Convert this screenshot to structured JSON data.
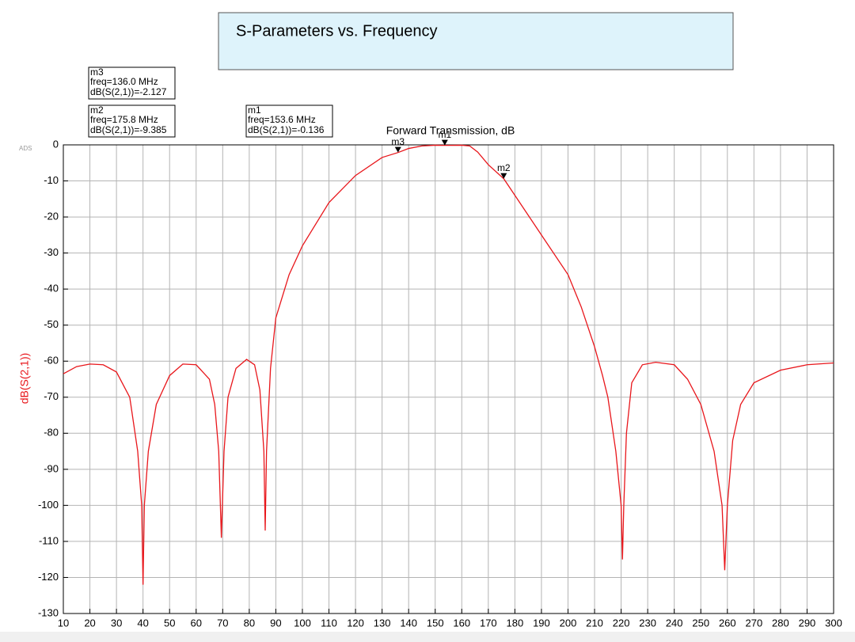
{
  "chart_data": {
    "type": "line",
    "title": "S-Parameters vs. Frequency",
    "logo": "ADS",
    "ylabel": "dB(S(2,1))",
    "trace_label": "Forward Transmission, dB",
    "xlim": [
      10,
      300
    ],
    "ylim": [
      -130,
      0
    ],
    "xticks": [
      10,
      20,
      30,
      40,
      50,
      60,
      70,
      80,
      90,
      100,
      110,
      120,
      130,
      140,
      150,
      160,
      170,
      180,
      190,
      200,
      210,
      220,
      230,
      240,
      250,
      260,
      270,
      280,
      290,
      300
    ],
    "yticks": [
      0,
      -10,
      -20,
      -30,
      -40,
      -50,
      -60,
      -70,
      -80,
      -90,
      -100,
      -110,
      -120,
      -130
    ],
    "grid": true,
    "series": [
      {
        "name": "dB(S(2,1))",
        "color": "#e8161b",
        "x": [
          10,
          15,
          20,
          25,
          30,
          35,
          38,
          39.5,
          40,
          40.5,
          42,
          45,
          50,
          55,
          60,
          65,
          67,
          68.5,
          69.5,
          70.5,
          72,
          75,
          79,
          82,
          84,
          85.5,
          86,
          86.5,
          88,
          90,
          95,
          100,
          110,
          120,
          130,
          136,
          140,
          145,
          150,
          153.6,
          160,
          163,
          166,
          170,
          175.8,
          180,
          190,
          200,
          205,
          210,
          213,
          215,
          218,
          220,
          220.5,
          221,
          222,
          224,
          228,
          233,
          240,
          245,
          250,
          255,
          258,
          259,
          260,
          262,
          265,
          270,
          280,
          290,
          300
        ],
        "values": [
          -63.5,
          -61.5,
          -60.8,
          -61,
          -63,
          -70,
          -85,
          -100,
          -122,
          -100,
          -85,
          -72,
          -64,
          -60.8,
          -61,
          -65,
          -72,
          -85,
          -109,
          -85,
          -70,
          -62,
          -59.5,
          -61,
          -68,
          -85,
          -107,
          -85,
          -62,
          -48,
          -36,
          -28,
          -16,
          -8.5,
          -3.5,
          -2.127,
          -1,
          -0.3,
          -0.1,
          -0.136,
          -0.1,
          -0.3,
          -2,
          -5.5,
          -9.385,
          -14,
          -25,
          -36,
          -45,
          -56,
          -64,
          -70,
          -85,
          -100,
          -115,
          -100,
          -80,
          -66,
          -61,
          -60.3,
          -61,
          -65,
          -72,
          -85,
          -100,
          -118,
          -100,
          -82,
          -72,
          -66,
          -62.5,
          -61,
          -60.5
        ]
      }
    ],
    "markers": [
      {
        "name": "m3",
        "freq": 136.0,
        "value": -2.127,
        "freq_label": "freq=136.0 MHz",
        "value_label": "dB(S(2,1))=-2.127"
      },
      {
        "name": "m2",
        "freq": 175.8,
        "value": -9.385,
        "freq_label": "freq=175.8 MHz",
        "value_label": "dB(S(2,1))=-9.385"
      },
      {
        "name": "m1",
        "freq": 153.6,
        "value": -0.136,
        "freq_label": "freq=153.6 MHz",
        "value_label": "dB(S(2,1))=-0.136"
      }
    ]
  }
}
